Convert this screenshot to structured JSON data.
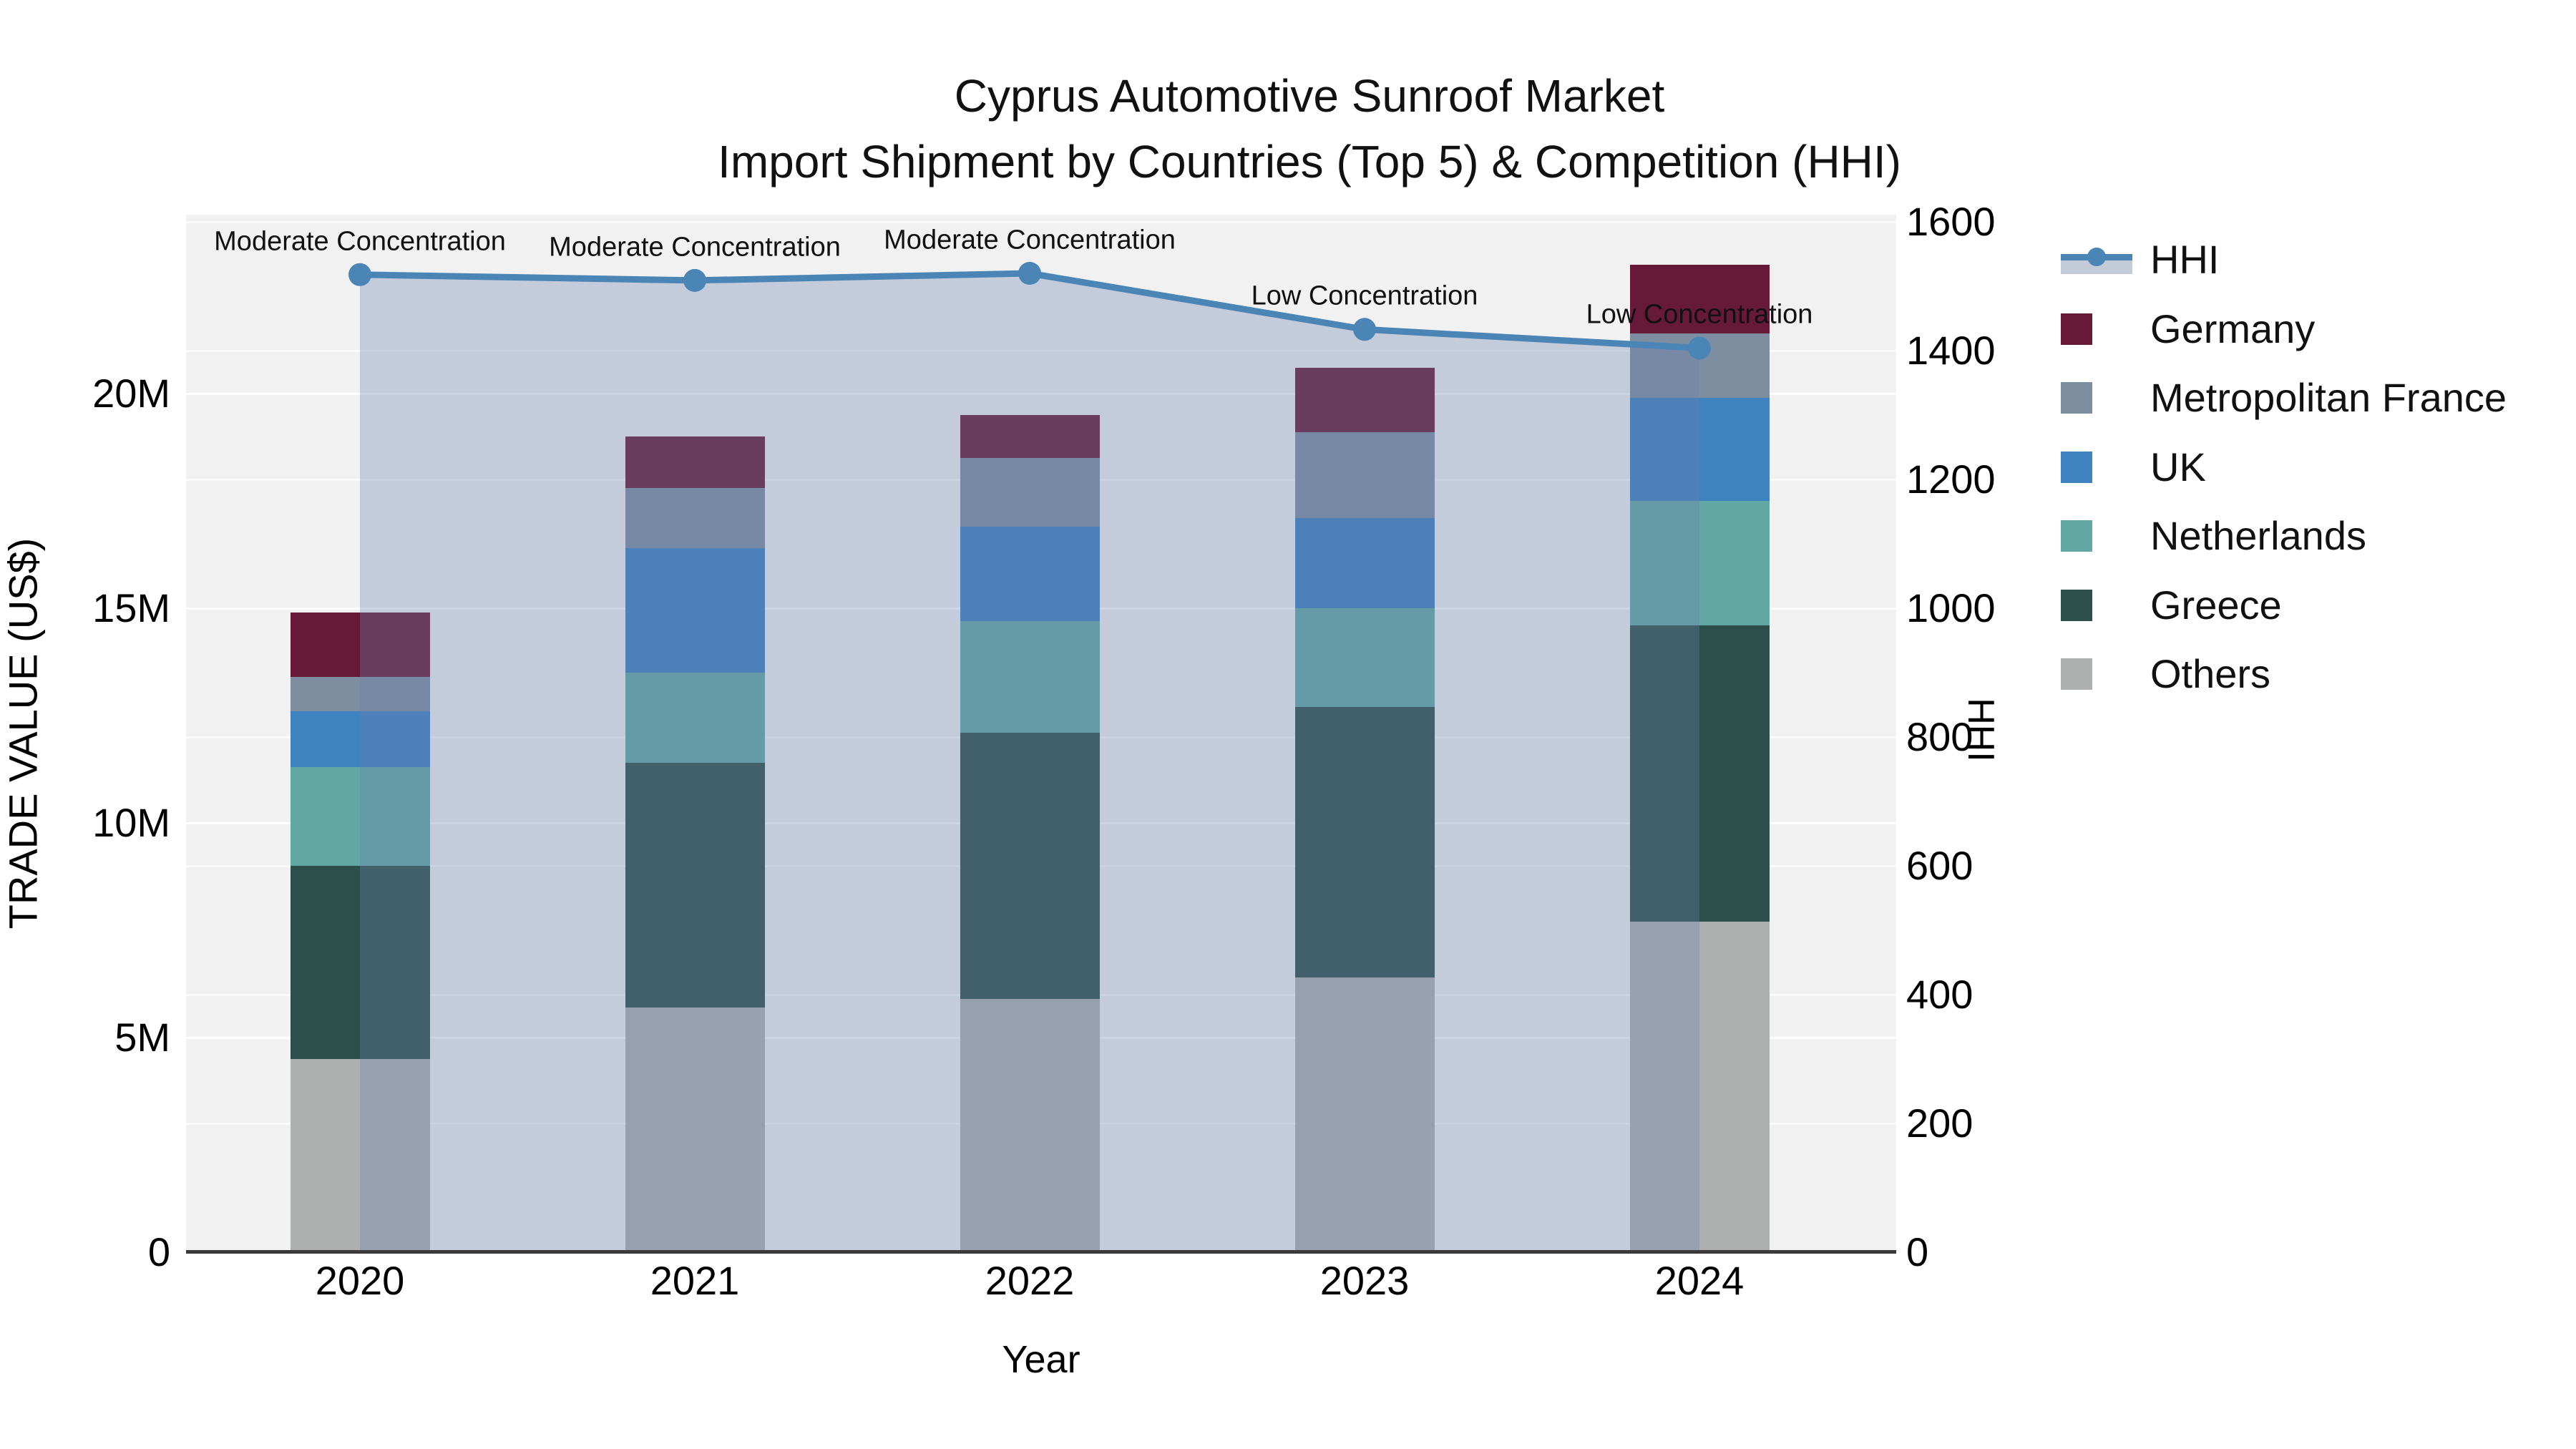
{
  "title": {
    "line1": "Cyprus Automotive Sunroof Market",
    "line2": "Import Shipment by Countries (Top 5) & Competition (HHI)"
  },
  "axes": {
    "left": {
      "title": "TRADE VALUE (US$)",
      "ticks": [
        {
          "v": 0,
          "label": "0"
        },
        {
          "v": 5,
          "label": "5M"
        },
        {
          "v": 10,
          "label": "10M"
        },
        {
          "v": 15,
          "label": "15M"
        },
        {
          "v": 20,
          "label": "20M"
        }
      ]
    },
    "right": {
      "title": "HHI",
      "ticks": [
        0,
        200,
        400,
        600,
        800,
        1000,
        1200,
        1400,
        1600
      ]
    },
    "x": {
      "title": "Year",
      "categories": [
        "2020",
        "2021",
        "2022",
        "2023",
        "2024"
      ]
    }
  },
  "annotations": [
    {
      "year_index": 0,
      "text": "Moderate Concentration"
    },
    {
      "year_index": 1,
      "text": "Moderate Concentration"
    },
    {
      "year_index": 2,
      "text": "Moderate Concentration"
    },
    {
      "year_index": 3,
      "text": "Low Concentration"
    },
    {
      "year_index": 4,
      "text": "Low Concentration"
    }
  ],
  "legend": {
    "items": [
      {
        "label": "HHI",
        "type": "line",
        "color": "#4a85b6",
        "band_color": "#c3cbd8"
      },
      {
        "label": "Germany",
        "type": "square",
        "color": "#671a38"
      },
      {
        "label": "Metropolitan France",
        "type": "square",
        "color": "#7e8ea1"
      },
      {
        "label": "UK",
        "type": "square",
        "color": "#3f82c0"
      },
      {
        "label": "Netherlands",
        "type": "square",
        "color": "#62a7a4"
      },
      {
        "label": "Greece",
        "type": "square",
        "color": "#2d4f4b"
      },
      {
        "label": "Others",
        "type": "square",
        "color": "#aeb0b0"
      }
    ]
  },
  "chart_data": {
    "type": "bar+line",
    "title": "Cyprus Automotive Sunroof Market — Import Shipment by Countries (Top 5) & Competition (HHI)",
    "categories": [
      "2020",
      "2021",
      "2022",
      "2023",
      "2024"
    ],
    "stacked": true,
    "units_left": "US$ millions",
    "ylim_left": [
      0,
      24
    ],
    "ylim_right": [
      0,
      1600
    ],
    "xlabel": "Year",
    "ylabel_left": "TRADE VALUE (US$)",
    "ylabel_right": "HHI",
    "grid": true,
    "legend_position": "right",
    "bar_series_bottom_to_top": [
      {
        "name": "Others",
        "color": "#aeb0b0",
        "values": [
          4.5,
          5.7,
          5.9,
          6.4,
          7.7
        ]
      },
      {
        "name": "Greece",
        "color": "#2d4f4b",
        "values": [
          4.5,
          5.7,
          6.2,
          6.3,
          6.9
        ]
      },
      {
        "name": "Netherlands",
        "color": "#62a7a4",
        "values": [
          2.3,
          2.1,
          2.6,
          2.3,
          2.9
        ]
      },
      {
        "name": "UK",
        "color": "#3f82c0",
        "values": [
          1.3,
          2.9,
          2.2,
          2.1,
          2.4
        ]
      },
      {
        "name": "Metropolitan France",
        "color": "#7e8ea1",
        "values": [
          0.8,
          1.4,
          1.6,
          2.0,
          1.5
        ]
      },
      {
        "name": "Germany",
        "color": "#671a38",
        "values": [
          1.5,
          1.2,
          1.0,
          1.5,
          1.6
        ]
      }
    ],
    "bar_totals": [
      14.9,
      19.0,
      19.5,
      20.6,
      23.0
    ],
    "line_series": {
      "name": "HHI",
      "color": "#4a85b6",
      "fill_color": "rgba(108,130,172,0.34)",
      "values": [
        1518,
        1509,
        1520,
        1433,
        1404
      ]
    }
  }
}
